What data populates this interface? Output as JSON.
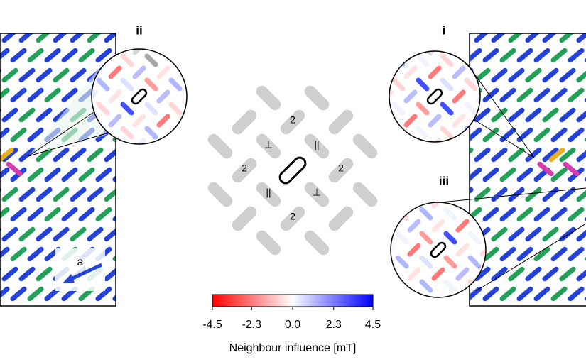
{
  "panels": {
    "left_label": "ii",
    "right_top_label": "i",
    "right_bottom_label": "iii",
    "arrow_label": "a"
  },
  "diagram": {
    "labels": [
      "2",
      "⊥",
      "||",
      "2",
      "2",
      "||",
      "⊥",
      "2"
    ]
  },
  "colorbar": {
    "lim": [
      -4.5,
      4.5
    ],
    "colors": [
      "#ff0000",
      "#ffffff",
      "#0000ff"
    ],
    "ticks": [
      -4.5,
      -2.3,
      {
        "value": 0,
        "label": "0.0"
      },
      2.3,
      4.5
    ],
    "label": "Neighbour influence [mT]"
  }
}
